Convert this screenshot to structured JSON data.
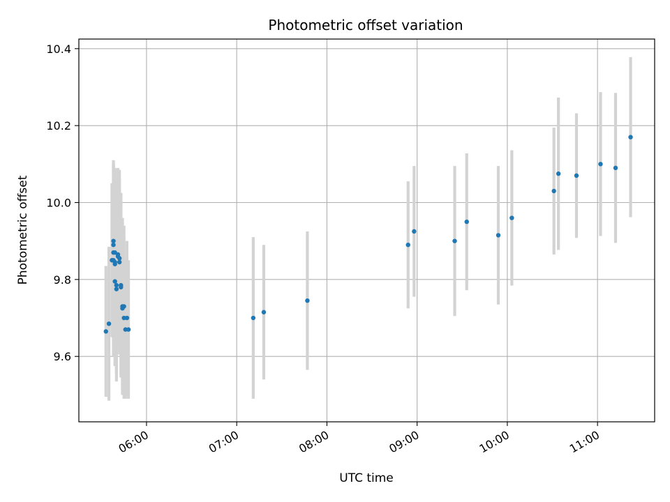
{
  "chart_data": {
    "type": "scatter",
    "title": "Photometric offset variation",
    "xlabel": "UTC time",
    "ylabel": "Photometric offset",
    "x_unit": "UTC clock time (HH:MM)",
    "xlim": [
      "05:15",
      "11:38"
    ],
    "ylim": [
      9.43,
      10.425
    ],
    "x_ticks": [
      "06:00",
      "07:00",
      "08:00",
      "09:00",
      "10:00",
      "11:00"
    ],
    "y_ticks": [
      9.6,
      9.8,
      10.0,
      10.2,
      10.4
    ],
    "y_tick_labels": [
      "9.6",
      "9.8",
      "10.0",
      "10.2",
      "10.4"
    ],
    "grid": true,
    "colors": {
      "point": "#1f77b4",
      "errorbar": "#d3d3d3",
      "grid": "#b0b0b0"
    },
    "series": [
      {
        "x": [
          "05:33",
          "05:35",
          "05:37",
          "05:38",
          "05:38",
          "05:38",
          "05:38",
          "05:39",
          "05:39",
          "05:39",
          "05:39",
          "05:40",
          "05:40",
          "05:41",
          "05:41",
          "05:42",
          "05:42",
          "05:43",
          "05:43",
          "05:44",
          "05:44",
          "05:45",
          "05:45",
          "05:46",
          "05:47",
          "05:48",
          "07:11",
          "07:18",
          "07:47",
          "08:54",
          "08:58",
          "09:25",
          "09:33",
          "09:54",
          "10:03",
          "10:31",
          "10:34",
          "10:46",
          "11:02",
          "11:12",
          "11:22"
        ],
        "y": [
          9.665,
          9.685,
          9.85,
          9.9,
          9.85,
          9.87,
          9.89,
          9.845,
          9.87,
          9.84,
          9.795,
          9.775,
          9.785,
          9.86,
          9.865,
          9.845,
          9.855,
          9.78,
          9.785,
          9.725,
          9.73,
          9.73,
          9.7,
          9.67,
          9.7,
          9.67,
          9.7,
          9.715,
          9.745,
          9.89,
          9.925,
          9.9,
          9.95,
          9.915,
          9.96,
          10.03,
          10.075,
          10.07,
          10.1,
          10.09,
          10.17
        ],
        "yerr": [
          0.17,
          0.2,
          0.2,
          0.21,
          0.25,
          0.23,
          0.21,
          0.24,
          0.22,
          0.23,
          0.22,
          0.24,
          0.23,
          0.23,
          0.22,
          0.24,
          0.21,
          0.23,
          0.24,
          0.21,
          0.23,
          0.21,
          0.21,
          0.18,
          0.2,
          0.18,
          0.21,
          0.175,
          0.18,
          0.165,
          0.17,
          0.195,
          0.178,
          0.18,
          0.176,
          0.165,
          0.198,
          0.162,
          0.187,
          0.195,
          0.208
        ]
      }
    ]
  }
}
